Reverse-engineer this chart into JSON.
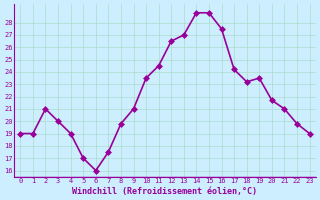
{
  "x": [
    0,
    1,
    2,
    3,
    4,
    5,
    6,
    7,
    8,
    9,
    10,
    11,
    12,
    13,
    14,
    15,
    16,
    17,
    18,
    19,
    20,
    21,
    22,
    23
  ],
  "y": [
    19,
    19,
    21,
    20,
    19,
    17,
    16,
    17.5,
    19.8,
    21,
    23.5,
    24.5,
    26.5,
    27,
    28.8,
    28.8,
    27.5,
    24.2,
    23.2,
    23.5,
    21.7,
    21,
    19.8,
    19
  ],
  "line_color": "#990099",
  "marker_color": "#990099",
  "bg_color": "#cceeff",
  "grid_color": "#aaddcc",
  "xlabel": "Windchill (Refroidissement éolien,°C)",
  "xlabel_color": "#990099",
  "tick_color": "#990099",
  "ylim": [
    15.5,
    29.5
  ],
  "xlim": [
    -0.5,
    23.5
  ],
  "yticks": [
    16,
    17,
    18,
    19,
    20,
    21,
    22,
    23,
    24,
    25,
    26,
    27,
    28
  ],
  "xticks": [
    0,
    1,
    2,
    3,
    4,
    5,
    6,
    7,
    8,
    9,
    10,
    11,
    12,
    13,
    14,
    15,
    16,
    17,
    18,
    19,
    20,
    21,
    22,
    23
  ],
  "marker_size": 3,
  "line_width": 1.2
}
